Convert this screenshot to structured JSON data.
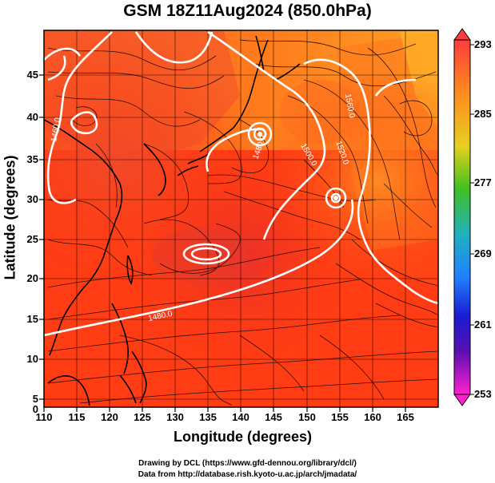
{
  "title": "GSM 18Z11Aug2024 (850.0hPa)",
  "xlabel": "Longitude (degrees)",
  "ylabel": "Latitude  (degrees)",
  "x_ticks": [
    "110",
    "115",
    "120",
    "125",
    "130",
    "135",
    "140",
    "145",
    "150",
    "155",
    "160",
    "165"
  ],
  "y_ticks": [
    "45",
    "40",
    "35",
    "30",
    "25",
    "20",
    "15",
    "10",
    "5",
    "0"
  ],
  "colorbar_ticks": [
    "293",
    "285",
    "277",
    "269",
    "261",
    "253"
  ],
  "contour_labels": [
    "1560.0",
    "1500.0",
    "1520.0",
    "1460.0",
    "1480.0",
    "1480.0"
  ],
  "credits": {
    "line1": "Drawing by DCL (https://www.gfd-dennou.org/library/dcl/)",
    "line2": "Data from http://database.rish.kyoto-u.ac.jp/arch/jmadata/"
  },
  "map": {
    "lon_range": [
      110,
      170
    ],
    "lat_range": [
      0,
      50
    ],
    "field": "temperature (K)",
    "field_range": [
      253,
      293
    ],
    "colors": {
      "warm": "#f03a1e",
      "hot": "#ff3c14",
      "mild": "#ff7a1e",
      "cool": "#ffb428",
      "coast": "#000000",
      "contour": "#ffffff",
      "streamline": "#1a0a05"
    }
  }
}
